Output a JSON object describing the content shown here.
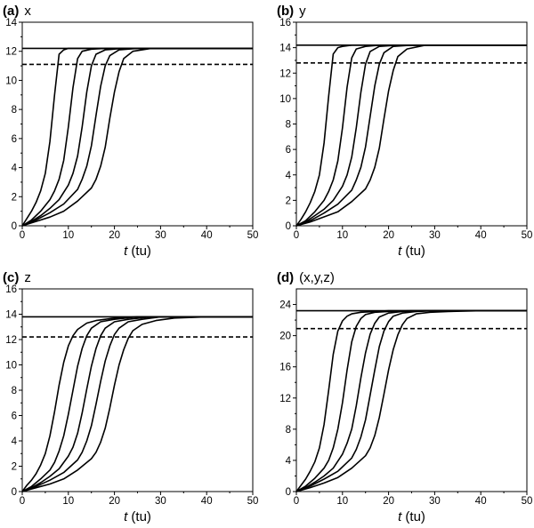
{
  "chart_data": [
    {
      "type": "line",
      "panel_label": "(a)",
      "title": "x",
      "xlabel_var": "t",
      "xlabel_unit": " (tu)",
      "xlim": [
        0,
        50
      ],
      "ylim": [
        0,
        14
      ],
      "xticks": [
        0,
        10,
        20,
        30,
        40,
        50
      ],
      "yticks": [
        0,
        2,
        4,
        6,
        8,
        10,
        12,
        14
      ],
      "grid": false,
      "series": [
        {
          "style": "solid",
          "x": [
            0,
            1,
            2,
            3,
            4,
            5,
            6,
            7,
            8,
            9,
            10,
            12,
            15,
            20,
            25,
            30,
            50
          ],
          "y": [
            0,
            0.5,
            1.0,
            1.6,
            2.4,
            3.6,
            5.8,
            9.0,
            11.8,
            12.1,
            12.2,
            12.2,
            12.2,
            12.2,
            12.2,
            12.2,
            12.2
          ]
        },
        {
          "style": "solid",
          "x": [
            0,
            2,
            4,
            6,
            7,
            8,
            9,
            10,
            11,
            12,
            13,
            15,
            18,
            25,
            50
          ],
          "y": [
            0,
            0.4,
            1.0,
            1.8,
            2.4,
            3.2,
            4.5,
            6.8,
            9.5,
            11.5,
            12.0,
            12.15,
            12.2,
            12.2,
            12.2
          ]
        },
        {
          "style": "solid",
          "x": [
            0,
            2,
            4,
            6,
            8,
            10,
            11,
            12,
            13,
            14,
            15,
            16,
            18,
            22,
            30,
            50
          ],
          "y": [
            0,
            0.3,
            0.7,
            1.2,
            1.8,
            2.8,
            3.6,
            4.8,
            6.8,
            9.2,
            11.0,
            11.8,
            12.1,
            12.2,
            12.2,
            12.2
          ]
        },
        {
          "style": "solid",
          "x": [
            0,
            3,
            6,
            9,
            12,
            13,
            14,
            15,
            16,
            17,
            18,
            19,
            21,
            25,
            30,
            50
          ],
          "y": [
            0,
            0.4,
            0.9,
            1.5,
            2.5,
            3.2,
            4.1,
            5.5,
            7.6,
            9.6,
            11.0,
            11.7,
            12.1,
            12.2,
            12.2,
            12.2
          ]
        },
        {
          "style": "solid",
          "x": [
            0,
            3,
            6,
            9,
            12,
            15,
            16,
            17,
            18,
            19,
            20,
            21,
            22,
            24,
            28,
            32,
            50
          ],
          "y": [
            0,
            0.3,
            0.6,
            1.0,
            1.7,
            2.6,
            3.2,
            4.1,
            5.4,
            7.4,
            9.2,
            10.6,
            11.5,
            12.0,
            12.2,
            12.2,
            12.2
          ]
        },
        {
          "style": "solid",
          "x": [
            0,
            2,
            5,
            10,
            15,
            20,
            30,
            50
          ],
          "y": [
            12.2,
            12.2,
            12.2,
            12.2,
            12.2,
            12.2,
            12.2,
            12.2
          ]
        },
        {
          "style": "dashed",
          "x": [
            0,
            50
          ],
          "y": [
            11.1,
            11.1
          ]
        }
      ]
    },
    {
      "type": "line",
      "panel_label": "(b)",
      "title": "y",
      "xlabel_var": "t",
      "xlabel_unit": " (tu)",
      "xlim": [
        0,
        50
      ],
      "ylim": [
        0,
        16
      ],
      "xticks": [
        0,
        10,
        20,
        30,
        40,
        50
      ],
      "yticks": [
        0,
        2,
        4,
        6,
        8,
        10,
        12,
        14,
        16
      ],
      "grid": false,
      "series": [
        {
          "style": "solid",
          "x": [
            0,
            1,
            2,
            3,
            4,
            5,
            6,
            7,
            8,
            9,
            10,
            12,
            15,
            20,
            25,
            30,
            50
          ],
          "y": [
            0,
            0.5,
            1.1,
            1.8,
            2.7,
            4.0,
            6.5,
            10.2,
            13.5,
            14.0,
            14.1,
            14.2,
            14.2,
            14.2,
            14.2,
            14.2,
            14.2
          ]
        },
        {
          "style": "solid",
          "x": [
            0,
            2,
            4,
            6,
            7,
            8,
            9,
            10,
            11,
            12,
            13,
            15,
            18,
            25,
            50
          ],
          "y": [
            0,
            0.4,
            1.1,
            2.0,
            2.7,
            3.6,
            5.1,
            7.7,
            10.9,
            13.2,
            13.9,
            14.1,
            14.2,
            14.2,
            14.2
          ]
        },
        {
          "style": "solid",
          "x": [
            0,
            2,
            4,
            6,
            8,
            10,
            11,
            12,
            13,
            14,
            15,
            16,
            18,
            22,
            30,
            50
          ],
          "y": [
            0,
            0.3,
            0.8,
            1.3,
            2.0,
            3.1,
            4.0,
            5.4,
            7.7,
            10.5,
            12.7,
            13.7,
            14.1,
            14.2,
            14.2,
            14.2
          ]
        },
        {
          "style": "solid",
          "x": [
            0,
            3,
            6,
            9,
            12,
            13,
            14,
            15,
            16,
            17,
            18,
            19,
            21,
            25,
            30,
            50
          ],
          "y": [
            0,
            0.4,
            1.0,
            1.7,
            2.8,
            3.6,
            4.6,
            6.2,
            8.6,
            11.0,
            12.7,
            13.6,
            14.1,
            14.2,
            14.2,
            14.2
          ]
        },
        {
          "style": "solid",
          "x": [
            0,
            3,
            6,
            9,
            12,
            15,
            16,
            17,
            18,
            19,
            20,
            21,
            22,
            24,
            28,
            32,
            50
          ],
          "y": [
            0,
            0.3,
            0.7,
            1.1,
            1.9,
            2.9,
            3.6,
            4.6,
            6.1,
            8.4,
            10.6,
            12.2,
            13.3,
            13.9,
            14.2,
            14.2,
            14.2
          ]
        },
        {
          "style": "solid",
          "x": [
            0,
            2,
            5,
            10,
            15,
            20,
            30,
            50
          ],
          "y": [
            14.2,
            14.2,
            14.2,
            14.2,
            14.2,
            14.2,
            14.2,
            14.2
          ]
        },
        {
          "style": "dashed",
          "x": [
            0,
            50
          ],
          "y": [
            12.8,
            12.8
          ]
        }
      ]
    },
    {
      "type": "line",
      "panel_label": "(c)",
      "title": "z",
      "xlabel_var": "t",
      "xlabel_unit": " (tu)",
      "xlim": [
        0,
        50
      ],
      "ylim": [
        0,
        16
      ],
      "xticks": [
        0,
        10,
        20,
        30,
        40,
        50
      ],
      "yticks": [
        0,
        2,
        4,
        6,
        8,
        10,
        12,
        14,
        16
      ],
      "grid": false,
      "series": [
        {
          "style": "solid",
          "x": [
            0,
            1,
            2,
            3,
            4,
            5,
            6,
            7,
            8,
            9,
            10,
            11,
            12,
            14,
            16,
            20,
            25,
            30,
            50
          ],
          "y": [
            0,
            0.5,
            0.9,
            1.4,
            2.1,
            3.0,
            4.4,
            6.3,
            8.4,
            10.2,
            11.5,
            12.3,
            12.8,
            13.3,
            13.5,
            13.7,
            13.8,
            13.8,
            13.8
          ]
        },
        {
          "style": "solid",
          "x": [
            0,
            2,
            4,
            6,
            7,
            8,
            9,
            10,
            11,
            12,
            13,
            14,
            15,
            17,
            20,
            25,
            30,
            50
          ],
          "y": [
            0,
            0.4,
            1.0,
            1.7,
            2.3,
            3.2,
            4.4,
            6.1,
            8.0,
            9.9,
            11.3,
            12.3,
            12.9,
            13.4,
            13.6,
            13.8,
            13.8,
            13.8
          ]
        },
        {
          "style": "solid",
          "x": [
            0,
            2,
            4,
            6,
            8,
            10,
            11,
            12,
            13,
            14,
            15,
            16,
            17,
            18,
            20,
            23,
            28,
            35,
            50
          ],
          "y": [
            0,
            0.3,
            0.7,
            1.2,
            1.8,
            2.8,
            3.5,
            4.6,
            6.2,
            8.1,
            9.9,
            11.3,
            12.3,
            12.9,
            13.4,
            13.6,
            13.8,
            13.8,
            13.8
          ]
        },
        {
          "style": "solid",
          "x": [
            0,
            3,
            6,
            9,
            12,
            13,
            14,
            15,
            16,
            17,
            18,
            19,
            20,
            21,
            23,
            26,
            30,
            38,
            50
          ],
          "y": [
            0,
            0.4,
            0.9,
            1.5,
            2.5,
            3.1,
            4.0,
            5.2,
            6.9,
            8.7,
            10.3,
            11.5,
            12.4,
            12.9,
            13.4,
            13.6,
            13.8,
            13.8,
            13.8
          ]
        },
        {
          "style": "solid",
          "x": [
            0,
            3,
            6,
            9,
            12,
            15,
            16,
            17,
            18,
            19,
            20,
            21,
            22,
            23,
            24,
            26,
            29,
            33,
            40,
            50
          ],
          "y": [
            0,
            0.3,
            0.6,
            1.0,
            1.7,
            2.6,
            3.1,
            3.9,
            5.0,
            6.6,
            8.4,
            10.0,
            11.2,
            12.1,
            12.7,
            13.2,
            13.5,
            13.7,
            13.8,
            13.8
          ]
        },
        {
          "style": "solid",
          "x": [
            0,
            2,
            5,
            10,
            15,
            20,
            30,
            50
          ],
          "y": [
            13.8,
            13.8,
            13.8,
            13.8,
            13.8,
            13.8,
            13.8,
            13.8
          ]
        },
        {
          "style": "dashed",
          "x": [
            0,
            50
          ],
          "y": [
            12.2,
            12.2
          ]
        }
      ]
    },
    {
      "type": "line",
      "panel_label": "(d)",
      "title": "(x,y,z)",
      "xlabel_var": "t",
      "xlabel_unit": " (tu)",
      "xlim": [
        0,
        50
      ],
      "ylim": [
        0,
        26
      ],
      "xticks": [
        0,
        10,
        20,
        30,
        40,
        50
      ],
      "yticks": [
        0,
        4,
        8,
        12,
        16,
        20,
        24
      ],
      "grid": false,
      "series": [
        {
          "style": "solid",
          "x": [
            0,
            1,
            2,
            3,
            4,
            5,
            6,
            7,
            8,
            9,
            10,
            11,
            12,
            14,
            17,
            20,
            25,
            30,
            50
          ],
          "y": [
            0,
            0.8,
            1.6,
            2.6,
            3.8,
            5.6,
            8.6,
            13.0,
            17.6,
            20.6,
            21.9,
            22.5,
            22.8,
            23.0,
            23.1,
            23.2,
            23.2,
            23.2,
            23.2
          ]
        },
        {
          "style": "solid",
          "x": [
            0,
            2,
            4,
            6,
            7,
            8,
            9,
            10,
            11,
            12,
            13,
            14,
            15,
            17,
            20,
            25,
            30,
            50
          ],
          "y": [
            0,
            0.7,
            1.7,
            3.0,
            4.0,
            5.6,
            8.0,
            11.4,
            15.6,
            19.2,
            21.2,
            22.2,
            22.7,
            23.0,
            23.1,
            23.2,
            23.2,
            23.2
          ]
        },
        {
          "style": "solid",
          "x": [
            0,
            2,
            4,
            6,
            8,
            10,
            11,
            12,
            13,
            14,
            15,
            16,
            17,
            18,
            20,
            23,
            28,
            35,
            50
          ],
          "y": [
            0,
            0.5,
            1.2,
            2.0,
            3.0,
            4.8,
            6.2,
            8.0,
            11.0,
            14.6,
            17.8,
            20.2,
            21.6,
            22.4,
            22.9,
            23.1,
            23.2,
            23.2,
            23.2
          ]
        },
        {
          "style": "solid",
          "x": [
            0,
            3,
            6,
            9,
            12,
            13,
            14,
            15,
            16,
            17,
            18,
            19,
            20,
            21,
            23,
            26,
            30,
            38,
            50
          ],
          "y": [
            0,
            0.7,
            1.6,
            2.6,
            4.3,
            5.4,
            7.0,
            9.2,
            12.4,
            15.6,
            18.6,
            20.6,
            21.8,
            22.5,
            22.9,
            23.1,
            23.2,
            23.2,
            23.2
          ]
        },
        {
          "style": "solid",
          "x": [
            0,
            3,
            6,
            9,
            12,
            15,
            16,
            17,
            18,
            19,
            20,
            21,
            22,
            23,
            24,
            26,
            29,
            33,
            40,
            50
          ],
          "y": [
            0,
            0.5,
            1.1,
            1.8,
            3.0,
            4.6,
            5.6,
            7.2,
            9.5,
            12.5,
            15.6,
            18.2,
            20.1,
            21.4,
            22.2,
            22.8,
            23.0,
            23.1,
            23.2,
            23.2
          ]
        },
        {
          "style": "solid",
          "x": [
            0,
            2,
            5,
            10,
            15,
            20,
            30,
            50
          ],
          "y": [
            23.2,
            23.2,
            23.2,
            23.2,
            23.2,
            23.2,
            23.2,
            23.2
          ]
        },
        {
          "style": "dashed",
          "x": [
            0,
            50
          ],
          "y": [
            20.9,
            20.9
          ]
        }
      ]
    }
  ]
}
